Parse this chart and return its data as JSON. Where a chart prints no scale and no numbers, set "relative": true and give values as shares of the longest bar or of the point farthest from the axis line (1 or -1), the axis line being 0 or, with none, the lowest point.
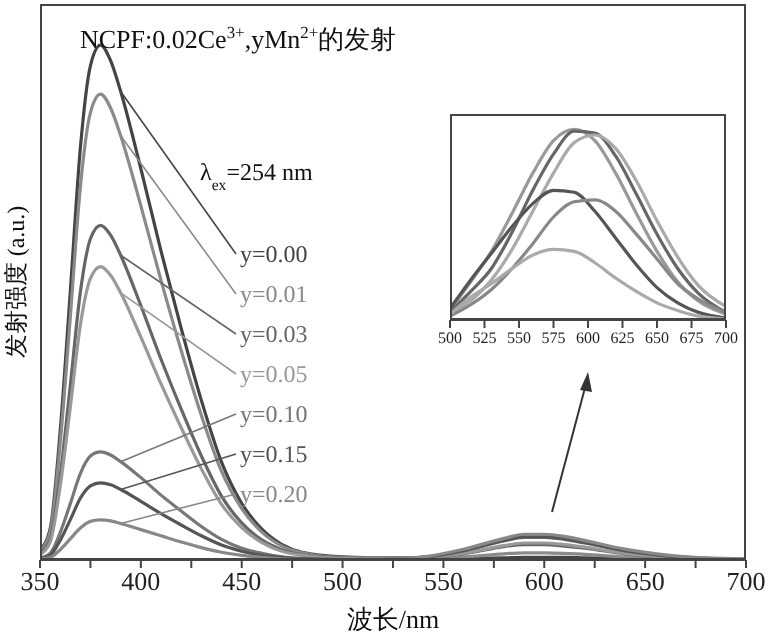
{
  "chart_data": [
    {
      "type": "line",
      "title": "NCPF:0.02Ce$^{3+}$,yMn$^{2+}$的发射",
      "xlabel": "波长/nm",
      "ylabel": "发射强度 (a.u.)",
      "annotations": [
        "λ$_{ex}$=254 nm"
      ],
      "relative": true,
      "tick_labels": "x",
      "xlim": [
        350,
        700
      ],
      "xticks": [
        350,
        {
          "value": 375,
          "label": null
        },
        400,
        {
          "value": 425,
          "label": null
        },
        450,
        {
          "value": 475,
          "label": null
        },
        500,
        {
          "value": 525,
          "label": null
        },
        550,
        {
          "value": 575,
          "label": null
        },
        600,
        {
          "value": 625,
          "label": null
        },
        650,
        {
          "value": 675,
          "label": null
        },
        700
      ],
      "x": [
        350,
        355,
        360,
        365,
        370,
        375,
        380,
        385,
        390,
        400,
        410,
        420,
        430,
        440,
        450,
        460,
        470,
        480,
        500,
        520,
        540,
        560,
        580,
        590,
        600,
        610,
        620,
        640,
        660,
        680,
        700
      ],
      "series": [
        {
          "name": "y=0.00",
          "color": "#444444",
          "values": [
            0.02,
            0.06,
            0.25,
            0.52,
            0.8,
            0.96,
            1,
            0.97,
            0.91,
            0.76,
            0.6,
            0.45,
            0.31,
            0.19,
            0.11,
            0.06,
            0.03,
            0.015,
            0.006,
            0.004,
            0.003,
            0.003,
            0.004,
            0.005,
            0.005,
            0.005,
            0.004,
            0.003,
            0.002,
            0.002,
            0.001
          ]
        },
        {
          "name": "y=0.01",
          "color": "#8a8a8a",
          "values": [
            0.018,
            0.054,
            0.226,
            0.471,
            0.724,
            0.869,
            0.905,
            0.878,
            0.824,
            0.688,
            0.543,
            0.407,
            0.281,
            0.172,
            0.1,
            0.054,
            0.027,
            0.014,
            0.005,
            0.004,
            0.004,
            0.006,
            0.012,
            0.014,
            0.014,
            0.013,
            0.011,
            0.006,
            0.003,
            0.001,
            0.001
          ]
        },
        {
          "name": "y=0.03",
          "color": "#666666",
          "values": [
            0.013,
            0.039,
            0.163,
            0.338,
            0.52,
            0.624,
            0.65,
            0.631,
            0.592,
            0.494,
            0.39,
            0.293,
            0.202,
            0.124,
            0.072,
            0.039,
            0.02,
            0.01,
            0.004,
            0.003,
            0.005,
            0.012,
            0.026,
            0.03,
            0.03,
            0.027,
            0.023,
            0.012,
            0.005,
            0.002,
            0.001
          ]
        },
        {
          "name": "y=0.05",
          "color": "#999999",
          "values": [
            0.011,
            0.034,
            0.143,
            0.296,
            0.456,
            0.547,
            0.57,
            0.553,
            0.519,
            0.433,
            0.342,
            0.257,
            0.177,
            0.108,
            0.063,
            0.034,
            0.017,
            0.009,
            0.003,
            0.002,
            0.005,
            0.013,
            0.028,
            0.033,
            0.033,
            0.03,
            0.025,
            0.013,
            0.006,
            0.002,
            0.001
          ]
        },
        {
          "name": "y=0.10",
          "color": "#777777",
          "values": [
            0.004,
            0.013,
            0.053,
            0.109,
            0.168,
            0.202,
            0.21,
            0.204,
            0.191,
            0.16,
            0.126,
            0.095,
            0.065,
            0.04,
            0.023,
            0.013,
            0.006,
            0.003,
            0.001,
            0.001,
            0.005,
            0.018,
            0.037,
            0.044,
            0.044,
            0.04,
            0.033,
            0.018,
            0.008,
            0.003,
            0.001
          ]
        },
        {
          "name": "y=0.15",
          "color": "#555555",
          "values": [
            0.003,
            0.009,
            0.038,
            0.078,
            0.12,
            0.144,
            0.15,
            0.146,
            0.137,
            0.114,
            0.09,
            0.068,
            0.047,
            0.029,
            0.017,
            0.009,
            0.005,
            0.002,
            0.001,
            0.001,
            0.005,
            0.018,
            0.038,
            0.045,
            0.045,
            0.041,
            0.034,
            0.018,
            0.008,
            0.003,
            0.001
          ]
        },
        {
          "name": "y=0.20",
          "color": "#888888",
          "values": [
            0.002,
            0.005,
            0.02,
            0.041,
            0.062,
            0.075,
            0.078,
            0.076,
            0.071,
            0.059,
            0.047,
            0.035,
            0.024,
            0.015,
            0.009,
            0.005,
            0.002,
            0.001,
            0.001,
            0.001,
            0.006,
            0.021,
            0.042,
            0.05,
            0.05,
            0.046,
            0.038,
            0.021,
            0.01,
            0.004,
            0.002
          ]
        }
      ]
    },
    {
      "type": "line",
      "relative": true,
      "tick_labels": "x",
      "xlim": [
        500,
        700
      ],
      "xticks": [
        500,
        525,
        550,
        575,
        600,
        625,
        650,
        675,
        700
      ],
      "x": [
        500,
        515,
        530,
        545,
        560,
        575,
        590,
        605,
        620,
        635,
        650,
        665,
        680,
        700
      ],
      "series": [
        {
          "color": "#999999",
          "values": [
            0.05,
            0.2,
            0.36,
            0.56,
            0.77,
            0.94,
            1,
            0.94,
            0.77,
            0.56,
            0.36,
            0.2,
            0.1,
            0.03
          ]
        },
        {
          "color": "#666666",
          "values": [
            0.04,
            0.15,
            0.27,
            0.46,
            0.68,
            0.87,
            0.99,
            0.98,
            0.86,
            0.66,
            0.45,
            0.27,
            0.14,
            0.04
          ]
        },
        {
          "color": "#aaaaaa",
          "values": [
            0.03,
            0.1,
            0.21,
            0.37,
            0.57,
            0.77,
            0.93,
            0.97,
            0.9,
            0.73,
            0.52,
            0.33,
            0.18,
            0.07
          ]
        },
        {
          "color": "#555555",
          "values": [
            0.06,
            0.21,
            0.35,
            0.49,
            0.61,
            0.68,
            0.67,
            0.57,
            0.43,
            0.29,
            0.17,
            0.09,
            0.04,
            0.01
          ]
        },
        {
          "color": "#888888",
          "values": [
            0.02,
            0.08,
            0.16,
            0.27,
            0.4,
            0.54,
            0.62,
            0.63,
            0.57,
            0.45,
            0.32,
            0.19,
            0.11,
            0.04
          ]
        },
        {
          "color": "#aaaaaa",
          "values": [
            0.03,
            0.12,
            0.19,
            0.27,
            0.34,
            0.37,
            0.36,
            0.3,
            0.22,
            0.15,
            0.09,
            0.05,
            0.02,
            0.005
          ]
        }
      ]
    }
  ]
}
